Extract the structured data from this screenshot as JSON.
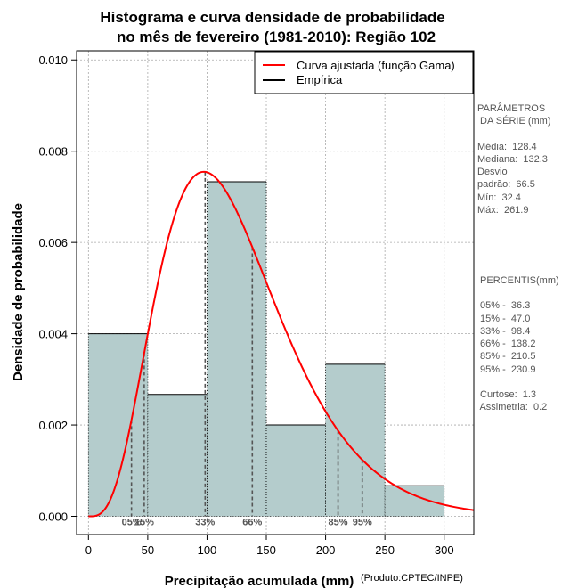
{
  "chart_data": {
    "type": "histogram",
    "title_line1": "Histograma e curva densidade de probabilidade",
    "title_line2": "no mês de fevereiro (1981-2010): Região 102",
    "xlabel": "Precipitação acumulada (mm)",
    "ylabel": "Densidade de probabilidade",
    "credit": "(Produto:CPTEC/INPE)",
    "xlim": [
      -10,
      325
    ],
    "ylim": [
      -0.0004,
      0.0102
    ],
    "x_ticks": [
      0,
      50,
      100,
      150,
      200,
      250,
      300
    ],
    "x_tick_labels": [
      "0",
      "50",
      "100",
      "150",
      "200",
      "250",
      "300"
    ],
    "y_ticks": [
      0.0,
      0.002,
      0.004,
      0.006,
      0.008,
      0.01
    ],
    "y_tick_labels": [
      "0.000",
      "0.002",
      "0.004",
      "0.006",
      "0.008",
      "0.010"
    ],
    "bins": [
      {
        "from": 0,
        "to": 50,
        "density": 0.004
      },
      {
        "from": 50,
        "to": 100,
        "density": 0.00267
      },
      {
        "from": 100,
        "to": 150,
        "density": 0.00733
      },
      {
        "from": 150,
        "to": 200,
        "density": 0.002
      },
      {
        "from": 200,
        "to": 250,
        "density": 0.00333
      },
      {
        "from": 250,
        "to": 300,
        "density": 0.00067
      }
    ],
    "gamma_fit": {
      "shape": 4.55,
      "scale": 27.4
    },
    "percentile_markers": [
      {
        "label": "05%",
        "value": 36.3
      },
      {
        "label": "15%",
        "value": 47.0
      },
      {
        "label": "33%",
        "value": 98.4
      },
      {
        "label": "66%",
        "value": 138.2
      },
      {
        "label": "85%",
        "value": 210.5
      },
      {
        "label": "95%",
        "value": 230.9
      }
    ],
    "legend": [
      {
        "label": "Curva ajustada (função Gama)",
        "color": "#ff0000"
      },
      {
        "label": "Empírica",
        "color": "#000000"
      }
    ],
    "colors": {
      "bar_fill": "#b4cccc",
      "curve": "#ff0000",
      "grid": "#aaaaaa",
      "marker": "#555555"
    }
  },
  "side_panel": {
    "params_title_1": "PARÂMETROS",
    "params_title_2": " DA SÉRIE (mm)",
    "media": "Média:  128.4",
    "mediana": "Mediana:  132.3",
    "desvio_1": "Desvio",
    "desvio_2": "padrão:  66.5",
    "min": "Mín:  32.4",
    "max": "Máx:  261.9",
    "pct_title": " PERCENTIS(mm)",
    "p05": " 05% -  36.3",
    "p15": " 15% -  47.0",
    "p33": " 33% -  98.4",
    "p66": " 66% -  138.2",
    "p85": " 85% -  210.5",
    "p95": " 95% -  230.9",
    "curtose": " Curtose:  1.3",
    "assimetria": " Assimetria:  0.2"
  }
}
